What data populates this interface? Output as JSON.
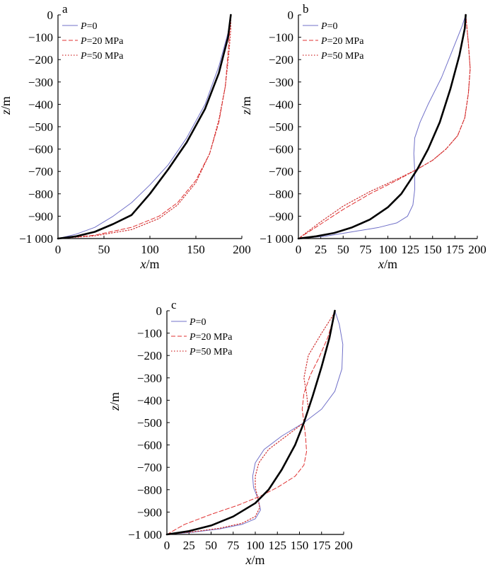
{
  "figure": {
    "xlabel": "x/m",
    "ylabel": "z/m"
  },
  "colors": {
    "series_0": "#7070c8",
    "series_20": "#e03030",
    "series_50": "#d03030",
    "center": "#000000"
  },
  "chart_data": [
    {
      "panel": "a",
      "type": "line",
      "xlabel": "x/m",
      "ylabel": "z/m",
      "xlim": [
        0,
        200
      ],
      "ylim": [
        -1000,
        0
      ],
      "xticks": [
        0,
        50,
        100,
        150,
        200
      ],
      "xtick_labels": [
        "0",
        "50",
        "100",
        "150",
        "200"
      ],
      "yticks": [
        0,
        -100,
        -200,
        -300,
        -400,
        -500,
        -600,
        -700,
        -800,
        -900,
        -1000
      ],
      "ytick_labels": [
        "0",
        "−100",
        "−200",
        "−300",
        "−400",
        "−500",
        "−600",
        "−700",
        "−800",
        "−900",
        "−1 000"
      ],
      "legend": [
        "P=0",
        "P=20 MPa",
        "P=50 MPa"
      ],
      "legend_placement": "top-left",
      "series": [
        {
          "name": "P=0",
          "style": "solid-blue",
          "points": [
            [
              0,
              -1000
            ],
            [
              20,
              -980
            ],
            [
              40,
              -950
            ],
            [
              60,
              -900
            ],
            [
              80,
              -840
            ],
            [
              100,
              -760
            ],
            [
              120,
              -670
            ],
            [
              140,
              -550
            ],
            [
              160,
              -400
            ],
            [
              175,
              -230
            ],
            [
              185,
              -80
            ],
            [
              188,
              0
            ]
          ]
        },
        {
          "name": "P=20 MPa",
          "style": "dash-red",
          "points": [
            [
              0,
              -1000
            ],
            [
              40,
              -985
            ],
            [
              80,
              -950
            ],
            [
              110,
              -900
            ],
            [
              130,
              -840
            ],
            [
              150,
              -740
            ],
            [
              165,
              -620
            ],
            [
              175,
              -480
            ],
            [
              182,
              -320
            ],
            [
              185,
              -170
            ],
            [
              187,
              -60
            ],
            [
              188,
              0
            ]
          ]
        },
        {
          "name": "P=50 MPa",
          "style": "dot-red",
          "points": [
            [
              0,
              -1000
            ],
            [
              40,
              -988
            ],
            [
              80,
              -960
            ],
            [
              110,
              -910
            ],
            [
              130,
              -850
            ],
            [
              150,
              -750
            ],
            [
              165,
              -620
            ],
            [
              175,
              -470
            ],
            [
              182,
              -320
            ],
            [
              186,
              -170
            ],
            [
              188,
              -60
            ],
            [
              188,
              0
            ]
          ]
        },
        {
          "style": "thick-black",
          "points": [
            [
              0,
              -1000
            ],
            [
              20,
              -990
            ],
            [
              40,
              -970
            ],
            [
              60,
              -935
            ],
            [
              80,
              -895
            ],
            [
              100,
              -800
            ],
            [
              120,
              -690
            ],
            [
              140,
              -570
            ],
            [
              160,
              -420
            ],
            [
              175,
              -260
            ],
            [
              185,
              -100
            ],
            [
              188,
              0
            ]
          ]
        }
      ]
    },
    {
      "panel": "b",
      "type": "line",
      "xlabel": "x/m",
      "ylabel": "z/m",
      "xlim": [
        0,
        200
      ],
      "ylim": [
        -1000,
        0
      ],
      "xticks": [
        0,
        25,
        50,
        75,
        100,
        125,
        150,
        175,
        200
      ],
      "xtick_labels": [
        "0",
        "25",
        "50",
        "75",
        "100",
        "125",
        "150",
        "175",
        "200"
      ],
      "yticks": [
        0,
        -100,
        -200,
        -300,
        -400,
        -500,
        -600,
        -700,
        -800,
        -900,
        -1000
      ],
      "ytick_labels": [
        "0",
        "−100",
        "−200",
        "−300",
        "−400",
        "−500",
        "−600",
        "−700",
        "−800",
        "−900",
        "−1 000"
      ],
      "legend": [
        "P=0",
        "P=20 MPa",
        "P=50 MPa"
      ],
      "legend_placement": "top-left",
      "series": [
        {
          "name": "P=0",
          "style": "solid-blue",
          "points": [
            [
              0,
              -1000
            ],
            [
              30,
              -990
            ],
            [
              60,
              -970
            ],
            [
              90,
              -950
            ],
            [
              110,
              -930
            ],
            [
              122,
              -900
            ],
            [
              128,
              -850
            ],
            [
              130,
              -780
            ],
            [
              130,
              -700
            ],
            [
              129,
              -620
            ],
            [
              130,
              -550
            ],
            [
              136,
              -480
            ],
            [
              145,
              -400
            ],
            [
              160,
              -280
            ],
            [
              172,
              -160
            ],
            [
              183,
              -50
            ],
            [
              187,
              0
            ]
          ]
        },
        {
          "name": "P=20 MPa",
          "style": "dash-red",
          "points": [
            [
              0,
              -1000
            ],
            [
              25,
              -935
            ],
            [
              50,
              -870
            ],
            [
              80,
              -800
            ],
            [
              110,
              -740
            ],
            [
              133,
              -690
            ],
            [
              150,
              -650
            ],
            [
              165,
              -600
            ],
            [
              178,
              -540
            ],
            [
              186,
              -460
            ],
            [
              190,
              -350
            ],
            [
              192,
              -240
            ],
            [
              190,
              -130
            ],
            [
              188,
              -40
            ],
            [
              187,
              0
            ]
          ]
        },
        {
          "name": "P=50 MPa",
          "style": "dot-red",
          "points": [
            [
              0,
              -1000
            ],
            [
              25,
              -925
            ],
            [
              50,
              -855
            ],
            [
              80,
              -790
            ],
            [
              110,
              -735
            ],
            [
              133,
              -690
            ],
            [
              150,
              -650
            ],
            [
              165,
              -600
            ],
            [
              178,
              -540
            ],
            [
              186,
              -460
            ],
            [
              190,
              -350
            ],
            [
              192,
              -240
            ],
            [
              190,
              -130
            ],
            [
              188,
              -40
            ],
            [
              187,
              0
            ]
          ]
        },
        {
          "style": "thick-black",
          "points": [
            [
              0,
              -1000
            ],
            [
              20,
              -990
            ],
            [
              40,
              -975
            ],
            [
              60,
              -950
            ],
            [
              80,
              -915
            ],
            [
              100,
              -860
            ],
            [
              115,
              -800
            ],
            [
              125,
              -740
            ],
            [
              133,
              -690
            ],
            [
              145,
              -600
            ],
            [
              158,
              -480
            ],
            [
              170,
              -330
            ],
            [
              180,
              -180
            ],
            [
              186,
              -60
            ],
            [
              187,
              0
            ]
          ]
        }
      ]
    },
    {
      "panel": "c",
      "type": "line",
      "xlabel": "x/m",
      "ylabel": "z/m",
      "xlim": [
        0,
        200
      ],
      "ylim": [
        -1000,
        0
      ],
      "xticks": [
        0,
        25,
        50,
        75,
        100,
        125,
        150,
        175,
        200
      ],
      "xtick_labels": [
        "0",
        "25",
        "50",
        "75",
        "100",
        "125",
        "150",
        "175",
        "200"
      ],
      "yticks": [
        0,
        -100,
        -200,
        -300,
        -400,
        -500,
        -600,
        -700,
        -800,
        -900,
        -1000
      ],
      "ytick_labels": [
        "0",
        "−100",
        "−200",
        "−300",
        "−400",
        "−500",
        "−600",
        "−700",
        "−800",
        "−900",
        "−1 000"
      ],
      "legend": [
        "P=0",
        "P=20 MPa",
        "P=50 MPa"
      ],
      "legend_placement": "top-left",
      "series": [
        {
          "name": "P=0",
          "style": "solid-blue",
          "points": [
            [
              0,
              -1000
            ],
            [
              30,
              -990
            ],
            [
              60,
              -975
            ],
            [
              85,
              -955
            ],
            [
              100,
              -930
            ],
            [
              106,
              -890
            ],
            [
              103,
              -840
            ],
            [
              98,
              -790
            ],
            [
              97,
              -740
            ],
            [
              100,
              -680
            ],
            [
              110,
              -620
            ],
            [
              130,
              -560
            ],
            [
              155,
              -500
            ],
            [
              175,
              -440
            ],
            [
              190,
              -360
            ],
            [
              198,
              -260
            ],
            [
              199,
              -150
            ],
            [
              195,
              -60
            ],
            [
              190,
              0
            ]
          ]
        },
        {
          "name": "P=20 MPa",
          "style": "dash-red",
          "points": [
            [
              0,
              -1000
            ],
            [
              20,
              -955
            ],
            [
              50,
              -910
            ],
            [
              80,
              -870
            ],
            [
              105,
              -830
            ],
            [
              125,
              -790
            ],
            [
              145,
              -740
            ],
            [
              155,
              -690
            ],
            [
              158,
              -630
            ],
            [
              157,
              -570
            ],
            [
              155,
              -500
            ],
            [
              153,
              -440
            ],
            [
              155,
              -370
            ],
            [
              162,
              -290
            ],
            [
              172,
              -210
            ],
            [
              182,
              -120
            ],
            [
              188,
              -40
            ],
            [
              190,
              0
            ]
          ]
        },
        {
          "name": "P=50 MPa",
          "style": "dot-red",
          "points": [
            [
              0,
              -1000
            ],
            [
              30,
              -988
            ],
            [
              60,
              -972
            ],
            [
              85,
              -950
            ],
            [
              100,
              -920
            ],
            [
              105,
              -880
            ],
            [
              103,
              -840
            ],
            [
              100,
              -790
            ],
            [
              100,
              -740
            ],
            [
              104,
              -680
            ],
            [
              115,
              -620
            ],
            [
              135,
              -560
            ],
            [
              155,
              -500
            ],
            [
              160,
              -440
            ],
            [
              158,
              -370
            ],
            [
              155,
              -300
            ],
            [
              160,
              -200
            ],
            [
              175,
              -100
            ],
            [
              188,
              -20
            ],
            [
              190,
              0
            ]
          ]
        },
        {
          "style": "thick-black",
          "points": [
            [
              0,
              -1000
            ],
            [
              25,
              -985
            ],
            [
              50,
              -960
            ],
            [
              75,
              -920
            ],
            [
              100,
              -860
            ],
            [
              115,
              -800
            ],
            [
              130,
              -710
            ],
            [
              145,
              -600
            ],
            [
              155,
              -500
            ],
            [
              165,
              -380
            ],
            [
              175,
              -250
            ],
            [
              184,
              -120
            ],
            [
              190,
              0
            ]
          ]
        }
      ]
    }
  ]
}
